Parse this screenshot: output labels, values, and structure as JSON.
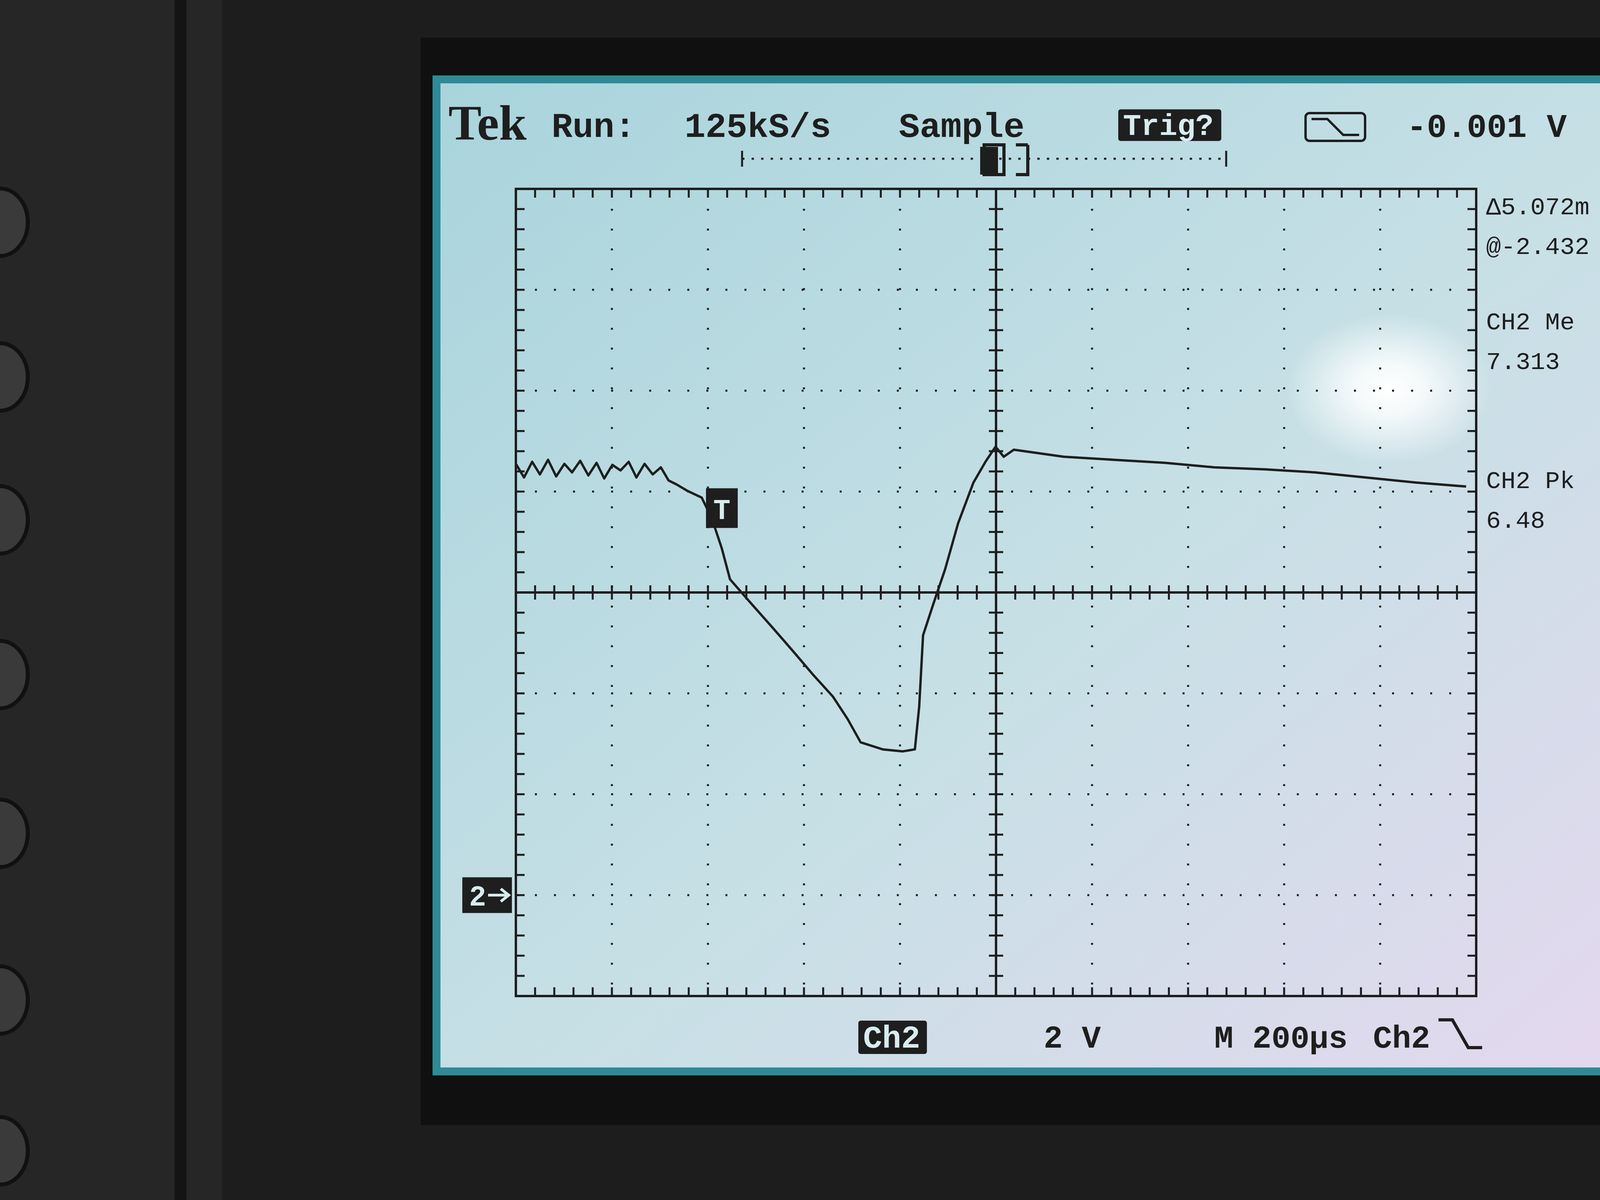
{
  "chart_data": {
    "type": "line",
    "x": [
      0,
      17,
      34,
      50,
      67,
      84,
      101,
      117,
      134,
      151,
      168,
      184,
      201,
      218,
      235,
      251,
      268,
      285,
      302,
      318,
      335,
      356,
      387,
      408,
      429,
      446,
      492,
      534,
      576,
      618,
      660,
      691,
      718,
      764,
      806,
      831,
      840,
      848,
      869,
      894,
      921,
      953,
      978,
      999,
      1016,
      1037,
      1141,
      1246,
      1351,
      1455,
      1560,
      1665,
      1770,
      1874,
      1979
    ],
    "series": [
      {
        "name": "Ch2",
        "color": "#1e1e1e",
        "line_style": "solid",
        "values": [
          8.55,
          8.28,
          8.59,
          8.34,
          8.63,
          8.3,
          8.55,
          8.38,
          8.61,
          8.32,
          8.57,
          8.26,
          8.53,
          8.42,
          8.59,
          8.28,
          8.55,
          8.34,
          8.48,
          8.22,
          8.14,
          8.02,
          7.88,
          7.47,
          6.87,
          6.26,
          5.76,
          5.31,
          4.85,
          4.38,
          3.94,
          3.49,
          3.03,
          2.89,
          2.85,
          2.89,
          3.74,
          5.15,
          5.76,
          6.46,
          7.37,
          8.18,
          8.59,
          8.89,
          8.69,
          8.83,
          8.69,
          8.63,
          8.57,
          8.48,
          8.44,
          8.38,
          8.28,
          8.18,
          8.1
        ]
      }
    ],
    "xlim": [
      0,
      2000
    ],
    "xticks": [
      0,
      200,
      400,
      600,
      800,
      1000,
      1200,
      1400,
      1600,
      1800,
      2000
    ],
    "ylim": [
      -2,
      14
    ],
    "yticks": [
      -2,
      0,
      2,
      4,
      6,
      8,
      10,
      12,
      14
    ],
    "grid": true,
    "tick_labels": false,
    "annotations": [
      {
        "text": "Tek"
      },
      {
        "text": "Run:"
      },
      {
        "text": "125kS/s"
      },
      {
        "text": "Sample"
      },
      {
        "text": "Trig?"
      },
      {
        "text": "-0.001 V"
      },
      {
        "text": "Δ5.072m"
      },
      {
        "text": "@-2.432"
      },
      {
        "text": "CH2 Me"
      },
      {
        "text": "7.313"
      },
      {
        "text": "CH2 Pk"
      },
      {
        "text": "6.48"
      },
      {
        "text": "2 V"
      },
      {
        "text": "M 200µs"
      },
      {
        "text": "Ch2"
      },
      {
        "text": "T",
        "x": 429,
        "y": 7.2
      },
      {
        "text": "2",
        "y": 0
      }
    ]
  }
}
